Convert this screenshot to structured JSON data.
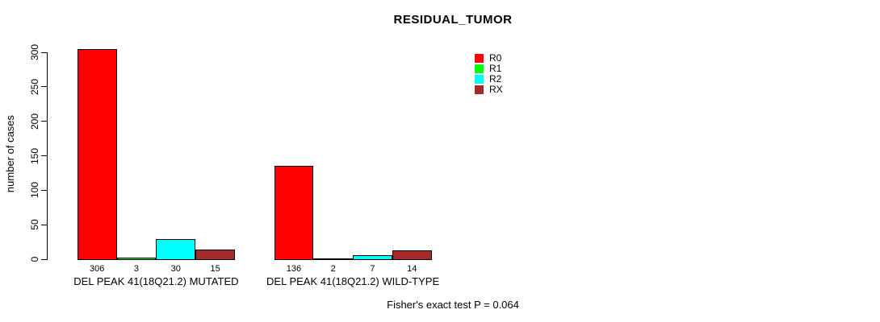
{
  "chart_data": {
    "type": "bar",
    "title": "RESIDUAL_TUMOR",
    "ylabel": "number of cases",
    "xlabel": "",
    "ylim": [
      0,
      300
    ],
    "yticks": [
      0,
      50,
      100,
      150,
      200,
      250,
      300
    ],
    "grid": false,
    "legend_position": "top-right",
    "categories": [
      "DEL PEAK 41(18Q21.2) MUTATED",
      "DEL PEAK 41(18Q21.2) WILD-TYPE"
    ],
    "series": [
      {
        "name": "R0",
        "color": "#FF0000",
        "values": [
          306,
          136
        ]
      },
      {
        "name": "R1",
        "color": "#00FF00",
        "values": [
          3,
          2
        ]
      },
      {
        "name": "R2",
        "color": "#00FFFF",
        "values": [
          30,
          7
        ]
      },
      {
        "name": "RX",
        "color": "#A52A2A",
        "values": [
          15,
          14
        ]
      }
    ],
    "bar_value_labels": [
      [
        "306",
        "3",
        "30",
        "15"
      ],
      [
        "136",
        "2",
        "7",
        "14"
      ]
    ],
    "annotation": "Fisher's exact test P = 0.064"
  }
}
